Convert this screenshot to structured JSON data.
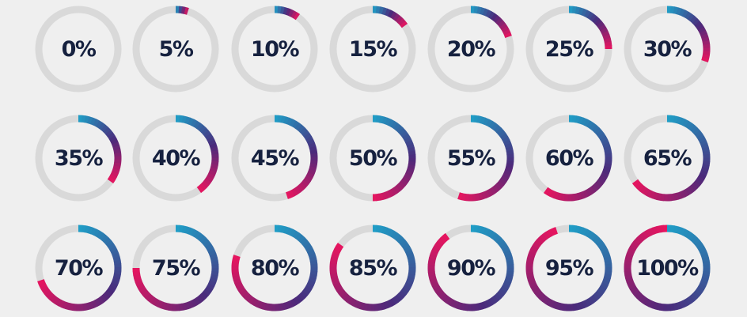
{
  "colors": {
    "track": "#d9d9d9",
    "gradient_start": "#1f9fc7",
    "gradient_mid": "#4b2a7b",
    "gradient_end": "#e8155f",
    "text": "#16213f",
    "background": "#efefef"
  },
  "rings": [
    {
      "label": "0%",
      "value": 0
    },
    {
      "label": "5%",
      "value": 5
    },
    {
      "label": "10%",
      "value": 10
    },
    {
      "label": "15%",
      "value": 15
    },
    {
      "label": "20%",
      "value": 20
    },
    {
      "label": "25%",
      "value": 25
    },
    {
      "label": "30%",
      "value": 30
    },
    {
      "label": "35%",
      "value": 35
    },
    {
      "label": "40%",
      "value": 40
    },
    {
      "label": "45%",
      "value": 45
    },
    {
      "label": "50%",
      "value": 50
    },
    {
      "label": "55%",
      "value": 55
    },
    {
      "label": "60%",
      "value": 60
    },
    {
      "label": "65%",
      "value": 65
    },
    {
      "label": "70%",
      "value": 70
    },
    {
      "label": "75%",
      "value": 75
    },
    {
      "label": "80%",
      "value": 80
    },
    {
      "label": "85%",
      "value": 85
    },
    {
      "label": "90%",
      "value": 90
    },
    {
      "label": "95%",
      "value": 95
    },
    {
      "label": "100%",
      "value": 100
    }
  ]
}
